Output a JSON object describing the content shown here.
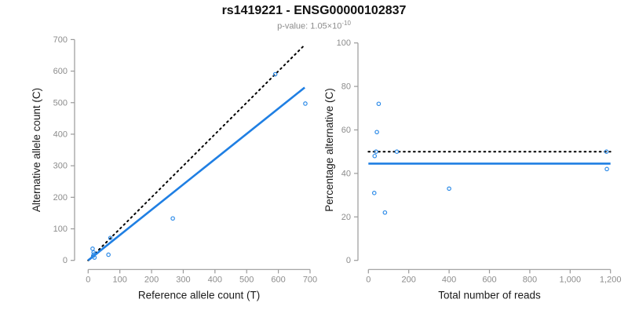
{
  "header": {
    "title": "rs1419221 - ENSG00000102837",
    "p_label": "p-value: 1.05×10",
    "p_exponent": "-10"
  },
  "colors": {
    "accent_blue": "#1f7fe3",
    "point_blue": "#2f8ce8",
    "dotted_black": "#000000",
    "axis_gray": "#9a9a9a",
    "tick_label_gray": "#8c8c8c"
  },
  "chart_data": [
    {
      "type": "scatter",
      "name": "allele-counts-scatter",
      "title": "rs1419221 - ENSG00000102837",
      "subtitle": "p-value: 1.05×10^-10",
      "xlabel": "Reference allele count (T)",
      "ylabel": "Alternative allele count (C)",
      "xlim": [
        0,
        700
      ],
      "ylim": [
        0,
        700
      ],
      "grid": false,
      "legend": "none",
      "xticks": {
        "values": [
          0,
          100,
          200,
          300,
          400,
          500,
          600,
          700
        ],
        "labels": [
          "0",
          "100",
          "200",
          "300",
          "400",
          "500",
          "600",
          "700"
        ]
      },
      "yticks": {
        "values": [
          0,
          100,
          200,
          300,
          400,
          500,
          600,
          700
        ],
        "labels": [
          "0",
          "100",
          "200",
          "300",
          "400",
          "500",
          "600",
          "700"
        ]
      },
      "points": [
        [
          14,
          37
        ],
        [
          17,
          25
        ],
        [
          19,
          19
        ],
        [
          16,
          15
        ],
        [
          20,
          9
        ],
        [
          64,
          18
        ],
        [
          70,
          71
        ],
        [
          267,
          133
        ],
        [
          590,
          590
        ],
        [
          685,
          497
        ]
      ],
      "lines": [
        {
          "name": "identity-dotted-line",
          "style": "dotted",
          "color": "#000000",
          "x": [
            0,
            683
          ],
          "y": [
            0,
            683
          ]
        },
        {
          "name": "fit-line",
          "style": "solid",
          "color": "#1f7fe3",
          "x": [
            0,
            683
          ],
          "y": [
            0,
            548
          ]
        }
      ]
    },
    {
      "type": "scatter",
      "name": "percentage-vs-reads-scatter",
      "xlabel": "Total number of reads",
      "ylabel": "Percentage alternative (C)",
      "xlim": [
        0,
        1200
      ],
      "ylim": [
        0,
        100
      ],
      "grid": false,
      "legend": "none",
      "xticks": {
        "values": [
          0,
          200,
          400,
          600,
          800,
          1000,
          1200
        ],
        "labels": [
          "0",
          "200",
          "400",
          "600",
          "800",
          "1,000",
          "1,200"
        ]
      },
      "yticks": {
        "values": [
          0,
          20,
          40,
          60,
          80,
          100
        ],
        "labels": [
          "0",
          "20",
          "40",
          "60",
          "80",
          "100"
        ]
      },
      "points": [
        [
          51,
          72
        ],
        [
          42,
          59
        ],
        [
          38,
          50
        ],
        [
          31,
          48
        ],
        [
          29,
          31
        ],
        [
          82,
          22
        ],
        [
          141,
          50
        ],
        [
          400,
          33
        ],
        [
          1180,
          50
        ],
        [
          1182,
          42
        ]
      ],
      "lines": [
        {
          "name": "expected-50pct-dotted-line",
          "style": "dotted",
          "color": "#000000",
          "x": [
            0,
            1200
          ],
          "y": [
            50,
            50
          ]
        },
        {
          "name": "mean-percentage-line",
          "style": "solid",
          "color": "#1f7fe3",
          "x": [
            0,
            1200
          ],
          "y": [
            44.5,
            44.5
          ]
        }
      ]
    }
  ]
}
